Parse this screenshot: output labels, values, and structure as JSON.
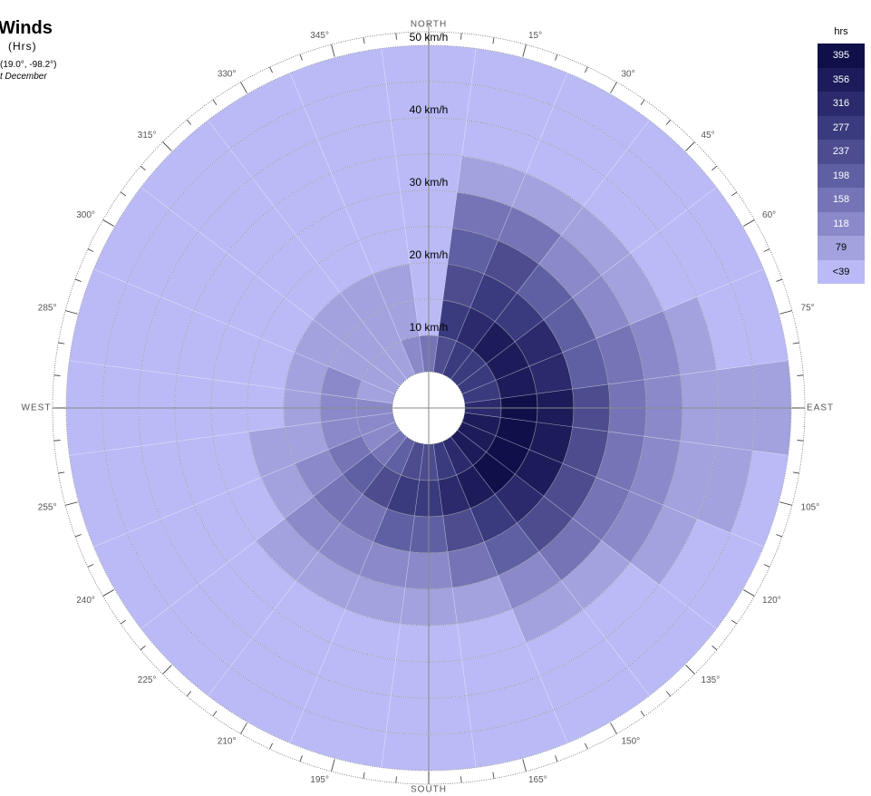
{
  "header": {
    "title": "Winds",
    "subtitle": "(Hrs)",
    "location": "(19.0°, -98.2°)",
    "period": "t December"
  },
  "compass": {
    "north": "NORTH",
    "south": "SOUTH",
    "east": "EAST",
    "west": "WEST",
    "degree_labels": [
      "15°",
      "30°",
      "45°",
      "60°",
      "75°",
      "105°",
      "120°",
      "135°",
      "150°",
      "165°",
      "195°",
      "210°",
      "225°",
      "240°",
      "255°",
      "285°",
      "300°",
      "315°",
      "330°",
      "345°"
    ]
  },
  "legend": {
    "title": "hrs",
    "items": [
      {
        "label": "395",
        "color": "#0f0f4a"
      },
      {
        "label": "356",
        "color": "#1c1c5a"
      },
      {
        "label": "316",
        "color": "#2a2a6c"
      },
      {
        "label": "277",
        "color": "#3a3a7e"
      },
      {
        "label": "237",
        "color": "#4c4c8f"
      },
      {
        "label": "198",
        "color": "#5f5fa3"
      },
      {
        "label": "158",
        "color": "#7474b6"
      },
      {
        "label": "118",
        "color": "#8a8aca"
      },
      {
        "label": "79",
        "color": "#a2a2de"
      },
      {
        "label": "<39",
        "color": "#babaf6"
      }
    ]
  },
  "chart_data": {
    "type": "heatmap",
    "title": "Winds",
    "subtitle": "(Hrs)",
    "speed_unit": "km/h",
    "speed_ring_labels": [
      "10 km/h",
      "20 km/h",
      "30 km/h",
      "40 km/h",
      "50 km/h"
    ],
    "speed_bins": [
      "0-10",
      "10-15",
      "15-20",
      "20-25",
      "25-30",
      "30-35",
      "35-40",
      "40-45",
      "45-50"
    ],
    "directions_deg": [
      0,
      15,
      30,
      45,
      60,
      75,
      90,
      105,
      120,
      135,
      150,
      165,
      180,
      195,
      210,
      225,
      240,
      255,
      270,
      285,
      300,
      315,
      330,
      345
    ],
    "legend_levels": [
      "<39",
      "79",
      "118",
      "158",
      "198",
      "237",
      "277",
      "316",
      "356",
      "395"
    ],
    "level_matrix": [
      [
        3,
        0,
        0,
        0,
        0,
        0,
        0,
        0,
        0
      ],
      [
        5,
        6,
        5,
        4,
        3,
        1,
        0,
        0,
        0
      ],
      [
        6,
        7,
        6,
        5,
        3,
        1,
        0,
        0,
        0
      ],
      [
        6,
        8,
        6,
        4,
        2,
        1,
        0,
        0,
        0
      ],
      [
        6,
        8,
        7,
        4,
        2,
        1,
        0,
        0,
        0
      ],
      [
        6,
        8,
        7,
        4,
        3,
        2,
        1,
        0,
        0
      ],
      [
        7,
        9,
        8,
        5,
        3,
        2,
        1,
        1,
        1
      ],
      [
        8,
        9,
        8,
        5,
        3,
        2,
        1,
        1,
        0
      ],
      [
        8,
        9,
        8,
        5,
        3,
        2,
        1,
        0,
        0
      ],
      [
        8,
        9,
        7,
        5,
        3,
        1,
        0,
        0,
        0
      ],
      [
        7,
        8,
        6,
        4,
        2,
        1,
        0,
        0,
        0
      ],
      [
        6,
        7,
        5,
        3,
        1,
        0,
        0,
        0,
        0
      ],
      [
        5,
        6,
        4,
        2,
        1,
        0,
        0,
        0,
        0
      ],
      [
        5,
        6,
        4,
        2,
        1,
        0,
        0,
        0,
        0
      ],
      [
        4,
        5,
        3,
        2,
        1,
        0,
        0,
        0,
        0
      ],
      [
        3,
        4,
        3,
        2,
        1,
        0,
        0,
        0,
        0
      ],
      [
        2,
        3,
        2,
        1,
        0,
        0,
        0,
        0,
        0
      ],
      [
        2,
        2,
        1,
        1,
        0,
        0,
        0,
        0,
        0
      ],
      [
        2,
        2,
        1,
        0,
        0,
        0,
        0,
        0,
        0
      ],
      [
        1,
        2,
        1,
        0,
        0,
        0,
        0,
        0,
        0
      ],
      [
        1,
        1,
        1,
        0,
        0,
        0,
        0,
        0,
        0
      ],
      [
        1,
        1,
        1,
        0,
        0,
        0,
        0,
        0,
        0
      ],
      [
        1,
        1,
        1,
        0,
        0,
        0,
        0,
        0,
        0
      ],
      [
        2,
        1,
        1,
        0,
        0,
        0,
        0,
        0,
        0
      ]
    ],
    "grid": true
  }
}
